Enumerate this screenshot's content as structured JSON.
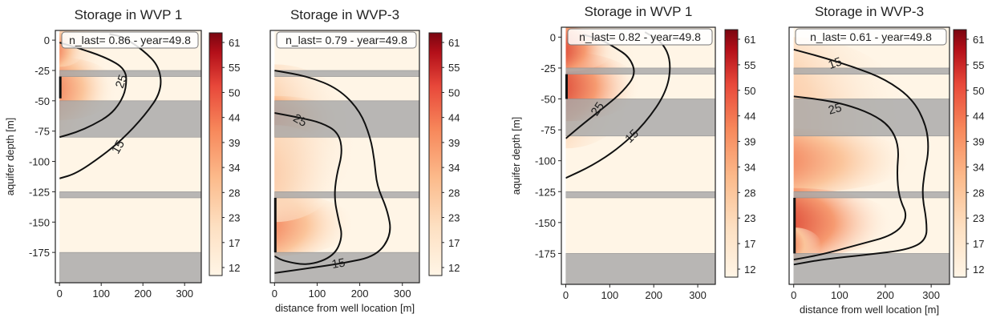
{
  "chart_data": [
    {
      "type": "heatmap",
      "title": "Storage in WVP 1",
      "annotation": "n_last= 0.86 - year=49.8",
      "ylabel": "aquifer depth [m]",
      "xlabel": "",
      "xlim": [
        -10,
        340
      ],
      "ylim": [
        -200,
        8
      ],
      "xticks": [
        "0",
        "100",
        "200",
        "300"
      ],
      "yticks": [
        "0",
        "-25",
        "-50",
        "-75",
        "-100",
        "-125",
        "-150",
        "-175"
      ],
      "contour_labels": [
        "25",
        "15"
      ],
      "colorbar_ticks": [
        "61",
        "55",
        "50",
        "44",
        "39",
        "34",
        "28",
        "23",
        "17",
        "12"
      ]
    },
    {
      "type": "heatmap",
      "title": "Storage in WVP-3",
      "annotation": "n_last= 0.79 - year=49.8",
      "ylabel": "",
      "xlabel": "distance from well location [m]",
      "xlim": [
        -10,
        340
      ],
      "ylim": [
        -200,
        8
      ],
      "xticks": [
        "0",
        "100",
        "200",
        "300"
      ],
      "yticks": [],
      "contour_labels": [
        "25",
        "15"
      ],
      "colorbar_ticks": [
        "61",
        "55",
        "50",
        "44",
        "39",
        "34",
        "28",
        "23",
        "17",
        "12"
      ]
    },
    {
      "type": "heatmap",
      "title": "Storage in WVP 1",
      "annotation": "n_last= 0.82 - year=49.8",
      "ylabel": "aquifer depth [m]",
      "xlabel": "",
      "xlim": [
        -10,
        340
      ],
      "ylim": [
        -200,
        8
      ],
      "xticks": [
        "0",
        "100",
        "200",
        "300"
      ],
      "yticks": [
        "0",
        "-25",
        "-50",
        "-75",
        "-100",
        "-125",
        "-150",
        "-175"
      ],
      "contour_labels": [
        "25",
        "15"
      ],
      "colorbar_ticks": [
        "61",
        "55",
        "50",
        "44",
        "39",
        "34",
        "28",
        "23",
        "17",
        "12"
      ]
    },
    {
      "type": "heatmap",
      "title": "Storage in WVP-3",
      "annotation": "n_last= 0.61 - year=49.8",
      "ylabel": "",
      "xlabel": "distance from well location [m]",
      "xlim": [
        -10,
        340
      ],
      "ylim": [
        -200,
        8
      ],
      "xticks": [
        "0",
        "100",
        "200",
        "300"
      ],
      "yticks": [],
      "contour_labels": [
        "15",
        "25"
      ],
      "colorbar_ticks": [
        "61",
        "55",
        "50",
        "44",
        "39",
        "34",
        "28",
        "23",
        "17",
        "12"
      ]
    }
  ],
  "colors": {
    "colormap": [
      "#fff5e6",
      "#fde0c2",
      "#fcbb8c",
      "#f7885b",
      "#e8483a",
      "#b30f19",
      "#7a0510"
    ],
    "clay_layer": "#a8a8a8",
    "well_marker": "#111111",
    "contour": "#111111"
  }
}
